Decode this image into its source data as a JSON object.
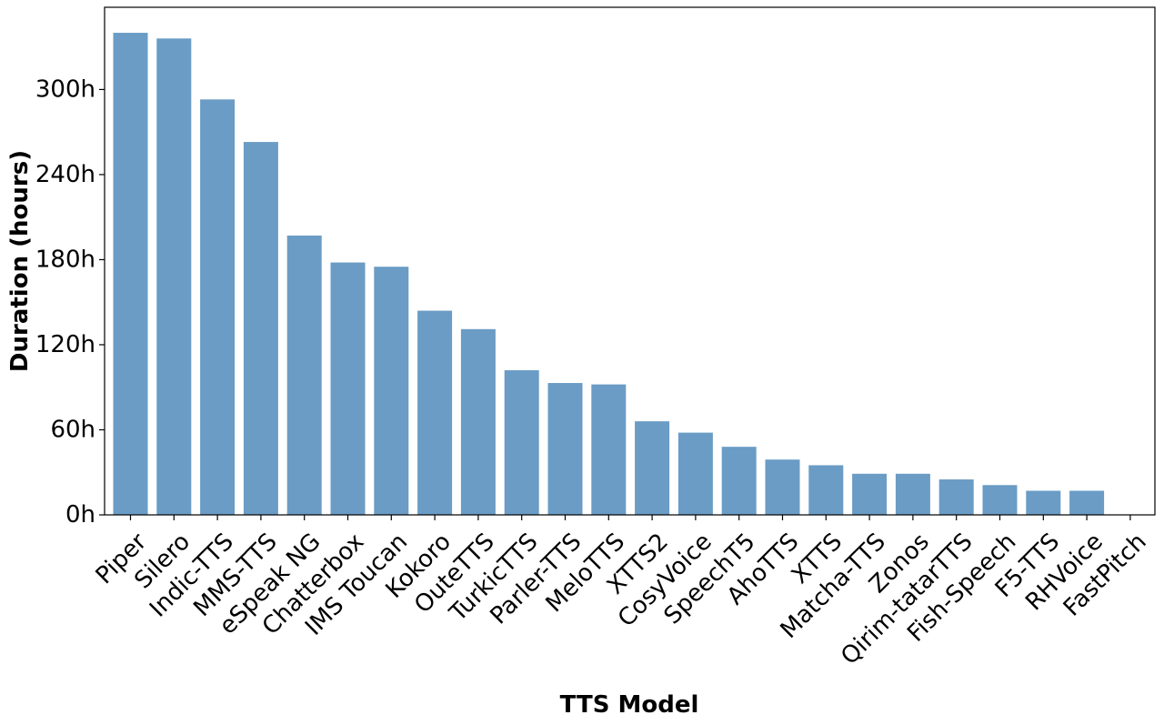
{
  "chart_data": {
    "type": "bar",
    "title": "",
    "xlabel": "TTS Model",
    "ylabel": "Duration (hours)",
    "ylim": [
      0,
      358
    ],
    "yticks": [
      0,
      60,
      120,
      180,
      240,
      300
    ],
    "ytick_labels": [
      "0h",
      "60h",
      "120h",
      "180h",
      "240h",
      "300h"
    ],
    "grid": false,
    "legend": "none",
    "bar_color": "#6a9cc5",
    "categories": [
      "Piper",
      "Silero",
      "Indic-TTS",
      "MMS-TTS",
      "eSpeak NG",
      "Chatterbox",
      "IMS Toucan",
      "Kokoro",
      "OuteTTS",
      "TurkicTTS",
      "Parler-TTS",
      "MeloTTS",
      "XTTS2",
      "CosyVoice",
      "SpeechT5",
      "AhoTTS",
      "XTTS",
      "Matcha-TTS",
      "Zonos",
      "Qirim-tatarTTS",
      "Fish-Speech",
      "F5-TTS",
      "RHVoice",
      "FastPitch"
    ],
    "values": [
      340,
      336,
      293,
      263,
      197,
      178,
      175,
      144,
      131,
      102,
      93,
      92,
      66,
      58,
      48,
      39,
      35,
      29,
      29,
      25,
      21,
      17,
      17,
      0
    ]
  }
}
